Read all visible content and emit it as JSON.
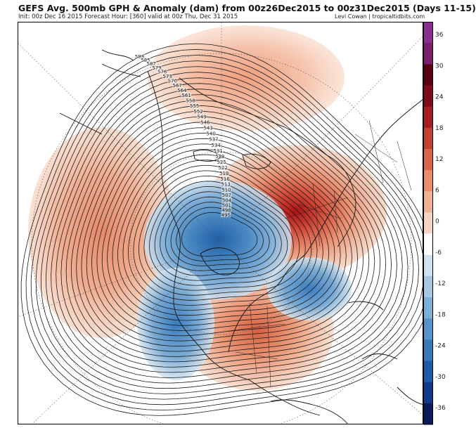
{
  "header": {
    "title": "GEFS Avg. 500mb GPH & Anomaly (dam) from 00z26Dec2015 to 00z31Dec2015 (Days 11-15)",
    "subtitle": "Init: 00z Dec 16 2015   Forecast Hour: [360]   valid at 00z Thu, Dec 31 2015",
    "credit": "Levi Cowan | tropicaltidbits.com"
  },
  "contour_labels": [
    "588",
    "585",
    "582",
    "579",
    "576",
    "573",
    "570",
    "567",
    "564",
    "561",
    "558",
    "555",
    "552",
    "549",
    "546",
    "543",
    "540",
    "537",
    "534",
    "531",
    "528",
    "525",
    "522",
    "519",
    "516",
    "513",
    "510",
    "507",
    "504",
    "501",
    "498",
    "495"
  ],
  "colorbar": {
    "ticks": [
      "36",
      "30",
      "24",
      "18",
      "12",
      "6",
      "0",
      "-6",
      "-12",
      "-18",
      "-24",
      "-30",
      "-36"
    ],
    "colors": [
      "#0b1b5a",
      "#123a8a",
      "#1d5ca8",
      "#3579bb",
      "#5593c8",
      "#7daed6",
      "#a7c8e3",
      "#cfe1ee",
      "#ffffff",
      "#f6d4c1",
      "#f0b092",
      "#e88c6a",
      "#d9664a",
      "#c44030",
      "#a61e22",
      "#7e0a1c",
      "#5a0014",
      "#7a1e6e",
      "#8b2f8f"
    ]
  }
}
